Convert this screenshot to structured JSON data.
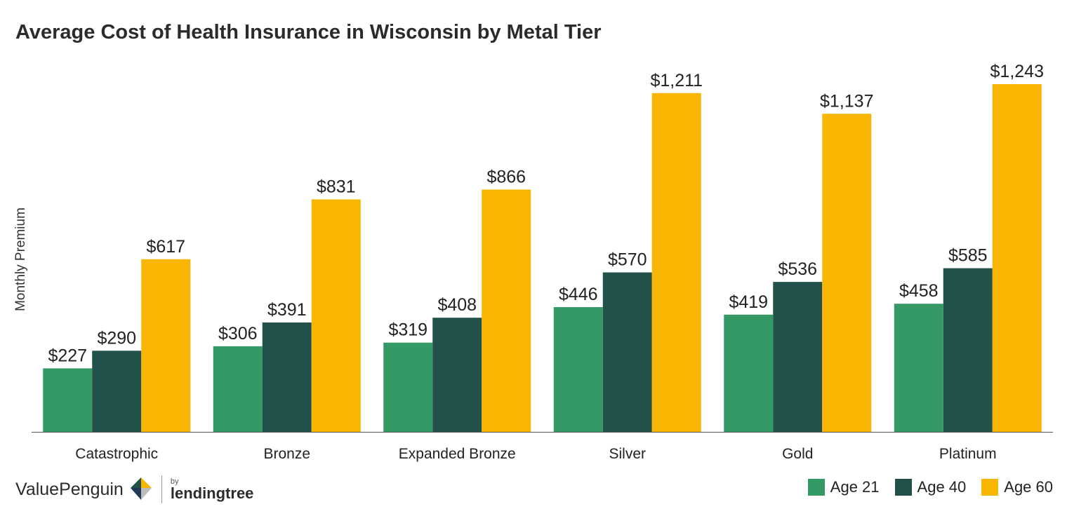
{
  "title": "Average Cost of Health Insurance in Wisconsin by Metal Tier",
  "brand": {
    "valuepenguin": "ValuePenguin",
    "by": "by",
    "lendingtree": "lendingtree"
  },
  "colors": {
    "age21": "#359966",
    "age40": "#22504a",
    "age60": "#f8b603"
  },
  "chart_data": {
    "type": "bar",
    "title": "Average Cost of Health Insurance in Wisconsin by Metal Tier",
    "xlabel": "",
    "ylabel": "Monthly Premium",
    "categories": [
      "Catastrophic",
      "Bronze",
      "Expanded Bronze",
      "Silver",
      "Gold",
      "Platinum"
    ],
    "series": [
      {
        "name": "Age 21",
        "values": [
          227,
          306,
          319,
          446,
          419,
          458
        ],
        "labels": [
          "$227",
          "$306",
          "$319",
          "$446",
          "$419",
          "$458"
        ]
      },
      {
        "name": "Age 40",
        "values": [
          290,
          391,
          408,
          570,
          536,
          585
        ],
        "labels": [
          "$290",
          "$391",
          "$408",
          "$570",
          "$536",
          "$585"
        ]
      },
      {
        "name": "Age 60",
        "values": [
          617,
          831,
          866,
          1211,
          1137,
          1243
        ],
        "labels": [
          "$617",
          "$831",
          "$866",
          "$1,211",
          "$1,137",
          "$1,243"
        ]
      }
    ],
    "ylim": [
      0,
      1243
    ],
    "grid": false,
    "legend": "bottom-right"
  }
}
